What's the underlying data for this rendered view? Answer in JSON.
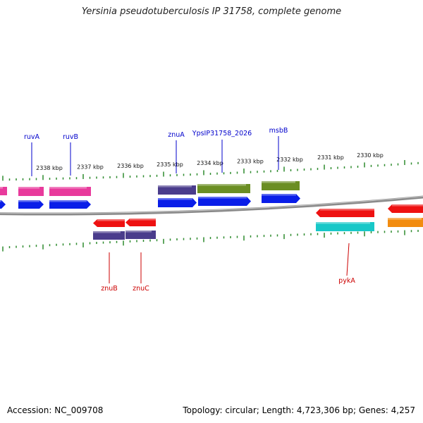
{
  "title": "Yersinia pseudotuberculosis IP 31758, complete genome",
  "footer": {
    "accession": "Accession: NC_009708",
    "topology": "Topology: circular; Length: 4,723,306 bp; Genes: 4,257"
  },
  "colors": {
    "backbone": "#8a8a8a",
    "tick": "#2e8b2e",
    "label_top": "#0000cc",
    "label_bottom": "#cc0000",
    "pink": "#e83a9c",
    "blue": "#0a1ee8",
    "navy": "#4a3c8c",
    "olive": "#6b8e23",
    "red": "#ee1111",
    "cyan": "#18c8c8",
    "orange": "#f28c10"
  },
  "kbp_ticks": [
    "2338 kbp",
    "2337 kbp",
    "2336 kbp",
    "2335 kbp",
    "2334 kbp",
    "2333 kbp",
    "2332 kbp",
    "2331 kbp",
    "2330 kbp"
  ],
  "genes_top": [
    {
      "name": "ruvA",
      "color": "label_top"
    },
    {
      "name": "ruvB",
      "color": "label_top"
    },
    {
      "name": "znuA",
      "color": "label_top"
    },
    {
      "name": "YpsIP31758_2026",
      "color": "label_top"
    },
    {
      "name": "msbB",
      "color": "label_top"
    }
  ],
  "genes_bottom": [
    {
      "name": "znuB",
      "color": "label_bottom"
    },
    {
      "name": "znuC",
      "color": "label_bottom"
    },
    {
      "name": "pykA",
      "color": "label_bottom"
    }
  ]
}
